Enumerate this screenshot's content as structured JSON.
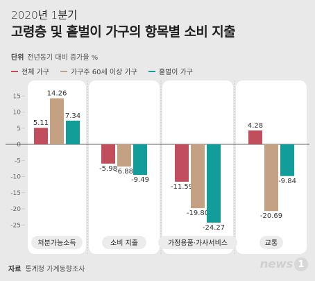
{
  "header": {
    "year": "2020년 1분기",
    "title": "고령층 및 홑벌이 가구의 항목별 소비 지출",
    "unit_label": "단위",
    "unit_text": "전년동기 대비 증가율 %"
  },
  "footer": {
    "source_label": "자료",
    "source_text": "통계청 가계동향조사",
    "logo_text": "news",
    "logo_badge": "1"
  },
  "chart_data": {
    "type": "bar",
    "categories": [
      "처분가능소득",
      "소비 지출",
      "가정용품·가사서비스",
      "교통"
    ],
    "series": [
      {
        "name": "전체 가구",
        "color": "#c04e5c",
        "values": [
          5.11,
          -5.98,
          -11.59,
          4.28
        ]
      },
      {
        "name": "가구주 60세 이상 가구",
        "color": "#c4a183",
        "values": [
          14.26,
          -6.88,
          -19.8,
          -20.69
        ]
      },
      {
        "name": "홑벌이 가구",
        "color": "#129d9a",
        "values": [
          7.34,
          -9.49,
          -24.27,
          -9.84
        ]
      }
    ],
    "value_labels": [
      [
        "5.11",
        "14.26",
        "7.34"
      ],
      [
        "-5.98",
        "-6.88",
        "-9.49"
      ],
      [
        "-11.59",
        "-19.80",
        "-24.27"
      ],
      [
        "4.28",
        "-20.69",
        "-9.84"
      ]
    ],
    "yticks": [
      15,
      10,
      5,
      0,
      -5,
      -10,
      -15,
      -20,
      -25
    ],
    "ytick_labels": [
      "15",
      "10",
      "5",
      "0",
      "-5",
      "-10",
      "-15",
      "-20",
      "-25"
    ],
    "ylim": [
      -27,
      17
    ],
    "grid": false,
    "legend": "top-left"
  }
}
